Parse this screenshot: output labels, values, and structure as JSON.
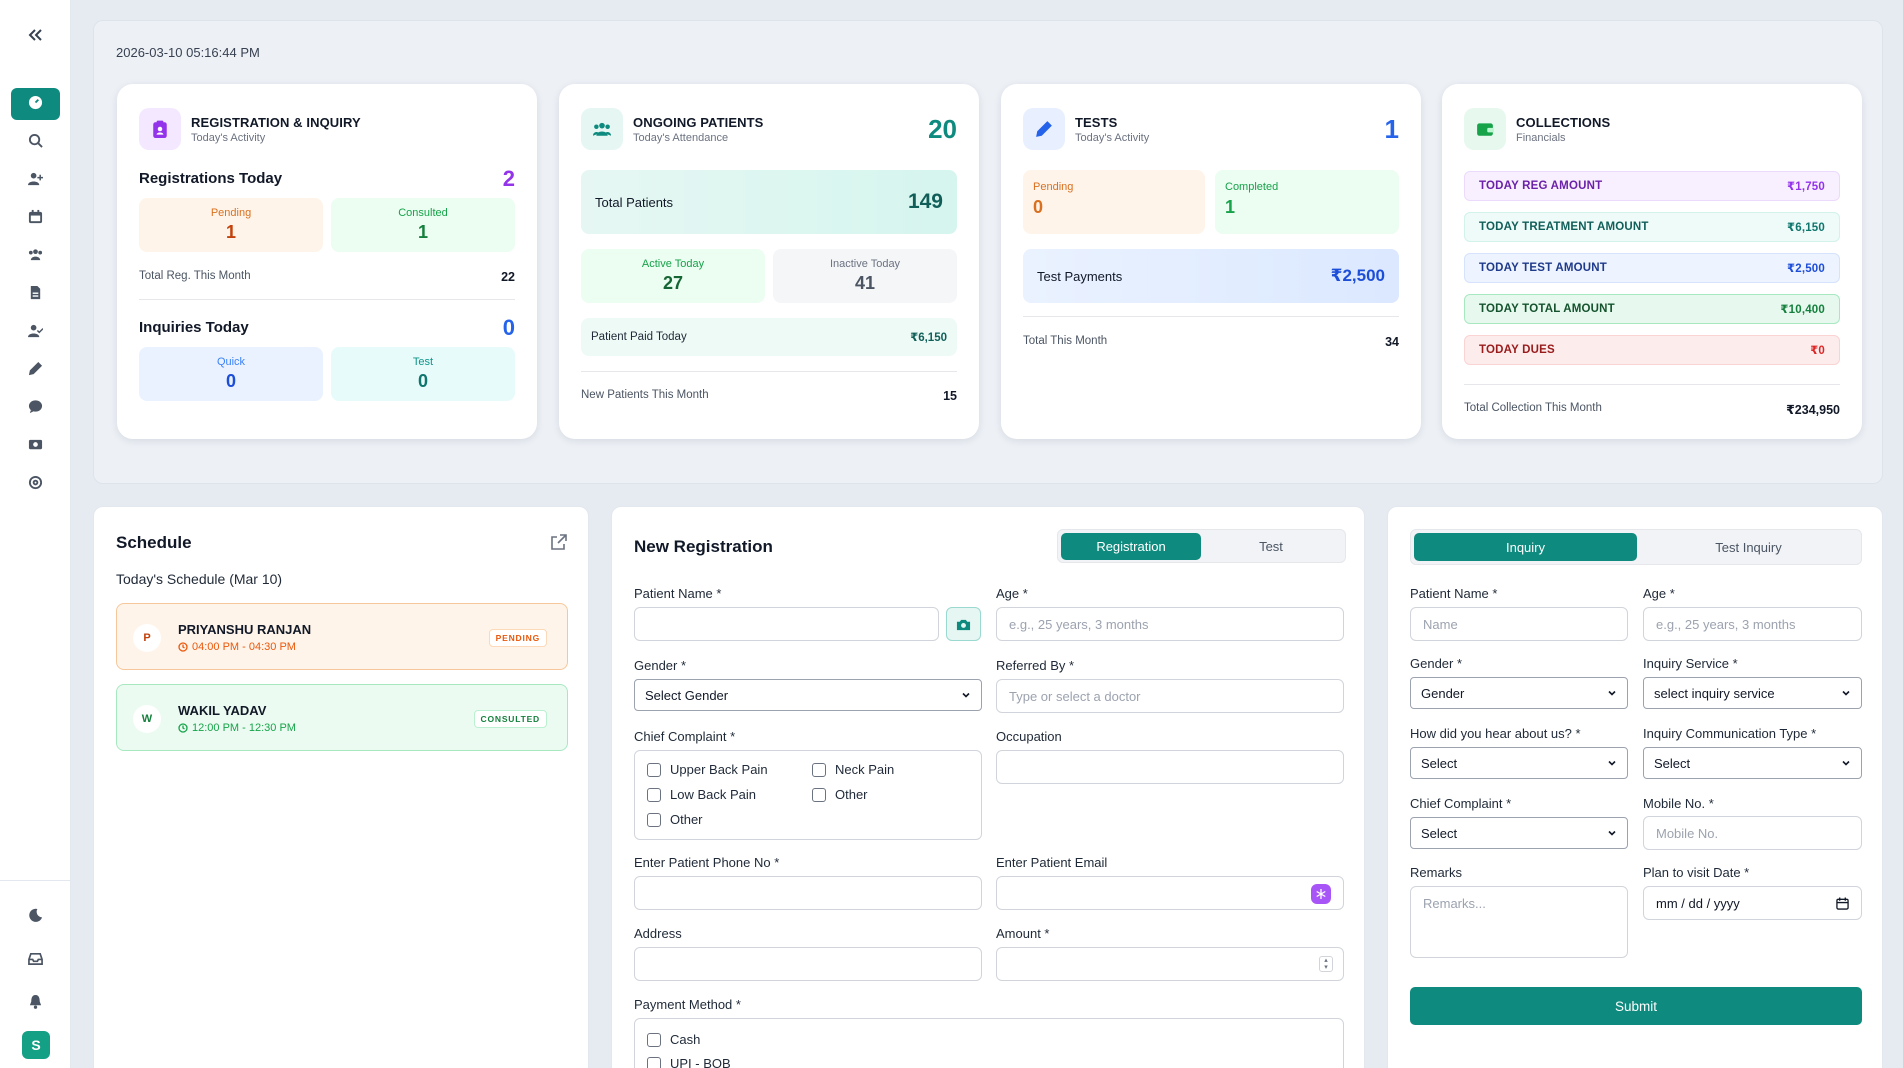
{
  "timestamp": "2026-03-10 05:16:44 PM",
  "sidebar": {
    "avatar_letter": "S",
    "items": [
      {
        "icon": "dashboard-icon"
      },
      {
        "icon": "search-icon"
      },
      {
        "icon": "add-user-icon"
      },
      {
        "icon": "calendar-icon"
      },
      {
        "icon": "users-icon"
      },
      {
        "icon": "file-icon"
      },
      {
        "icon": "user-check-icon"
      },
      {
        "icon": "pen-icon"
      },
      {
        "icon": "chat-icon"
      },
      {
        "icon": "money-icon"
      },
      {
        "icon": "support-icon"
      }
    ],
    "bottom_icons": [
      "moon-icon",
      "inbox-icon",
      "bell-icon"
    ]
  },
  "registration": {
    "title": "REGISTRATION & INQUIRY",
    "subtitle": "Today's Activity",
    "reg_label": "Registrations Today",
    "reg_value": "2",
    "pending_label": "Pending",
    "pending_value": "1",
    "consulted_label": "Consulted",
    "consulted_value": "1",
    "month_label": "Total Reg. This Month",
    "month_value": "22",
    "inq_label": "Inquiries Today",
    "inq_value": "0",
    "quick_label": "Quick",
    "quick_value": "0",
    "test_label": "Test",
    "test_value": "0"
  },
  "ongoing": {
    "title": "ONGOING PATIENTS",
    "subtitle": "Today's Attendance",
    "value": "20",
    "total_label": "Total Patients",
    "total_value": "149",
    "active_label": "Active Today",
    "active_value": "27",
    "inactive_label": "Inactive Today",
    "inactive_value": "41",
    "paid_label": "Patient Paid Today",
    "paid_value": "₹6,150",
    "new_label": "New Patients This Month",
    "new_value": "15"
  },
  "tests": {
    "title": "TESTS",
    "subtitle": "Today's Activity",
    "value": "1",
    "pending_label": "Pending",
    "pending_value": "0",
    "completed_label": "Completed",
    "completed_value": "1",
    "payments_label": "Test Payments",
    "payments_value": "₹2,500",
    "month_label": "Total This Month",
    "month_value": "34"
  },
  "collections": {
    "title": "COLLECTIONS",
    "subtitle": "Financials",
    "rows": [
      {
        "label": "TODAY REG AMOUNT",
        "value": "₹1,750"
      },
      {
        "label": "TODAY TREATMENT AMOUNT",
        "value": "₹6,150"
      },
      {
        "label": "TODAY TEST AMOUNT",
        "value": "₹2,500"
      },
      {
        "label": "TODAY TOTAL AMOUNT",
        "value": "₹10,400"
      },
      {
        "label": "TODAY DUES",
        "value": "₹0"
      }
    ],
    "month_label": "Total Collection This Month",
    "month_value": "₹234,950"
  },
  "schedule": {
    "title": "Schedule",
    "subtitle": "Today's Schedule (Mar 10)",
    "items": [
      {
        "initial": "P",
        "name": "PRIYANSHU RANJAN",
        "time": "04:00 PM - 04:30 PM",
        "status": "PENDING"
      },
      {
        "initial": "W",
        "name": "WAKIL YADAV",
        "time": "12:00 PM - 12:30 PM",
        "status": "CONSULTED"
      }
    ]
  },
  "new_registration": {
    "title": "New Registration",
    "tabs": [
      "Registration",
      "Test"
    ],
    "patient_name_label": "Patient Name *",
    "age_label": "Age *",
    "age_placeholder": "e.g., 25 years, 3 months",
    "gender_label": "Gender *",
    "gender_value": "Select Gender",
    "referred_label": "Referred By *",
    "referred_placeholder": "Type or select a doctor",
    "complaint_label": "Chief Complaint *",
    "complaints": [
      "Upper Back Pain",
      "Neck Pain",
      "Low Back Pain",
      "Other",
      "Other"
    ],
    "occupation_label": "Occupation",
    "phone_label": "Enter Patient Phone No *",
    "email_label": "Enter Patient Email",
    "address_label": "Address",
    "amount_label": "Amount *",
    "payment_label": "Payment Method *",
    "payment_methods": [
      "Cash",
      "UPI - BOB"
    ]
  },
  "inquiry": {
    "tabs": [
      "Inquiry",
      "Test Inquiry"
    ],
    "patient_name_label": "Patient Name *",
    "patient_name_placeholder": "Name",
    "age_label": "Age *",
    "age_placeholder": "e.g., 25 years, 3 months",
    "gender_label": "Gender *",
    "gender_value": "Gender",
    "service_label": "Inquiry Service *",
    "service_value": "select inquiry service",
    "hear_label": "How did you hear about us? *",
    "hear_value": "Select",
    "comm_label": "Inquiry Communication Type *",
    "comm_value": "Select",
    "complaint_label": "Chief Complaint *",
    "complaint_value": "Select",
    "mobile_label": "Mobile No. *",
    "mobile_placeholder": "Mobile No.",
    "remarks_label": "Remarks",
    "remarks_placeholder": "Remarks...",
    "visit_label": "Plan to visit Date *",
    "visit_value": "mm / dd / yyyy",
    "submit_label": "Submit"
  }
}
